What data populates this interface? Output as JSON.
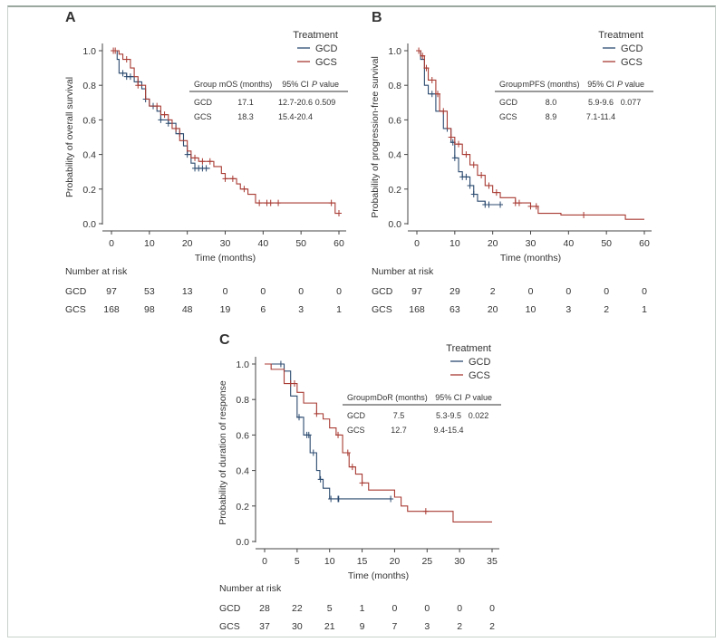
{
  "colors": {
    "GCD": "#2b4a6f",
    "GCS": "#a83a32"
  },
  "chart_data": [
    {
      "panel": "A",
      "type": "line",
      "subtype": "kaplan-meier",
      "xlabel": "Time (months)",
      "ylabel": "Probability of overall survival",
      "xlim": [
        0,
        60
      ],
      "ylim": [
        0,
        1
      ],
      "xticks": [
        0,
        10,
        20,
        30,
        40,
        50,
        60
      ],
      "yticks": [
        "0.0",
        "0.2",
        "0.4",
        "0.6",
        "0.8",
        "1.0"
      ],
      "legend": {
        "title": "Treatment",
        "position": "top-right",
        "items": [
          "GCD",
          "GCS"
        ]
      },
      "stats_table": {
        "headers": [
          "Group",
          "mOS (months)",
          "95% CI",
          "P value"
        ],
        "rows": [
          [
            "GCD",
            "17.1",
            "12.7-20.6",
            "0.509"
          ],
          [
            "GCS",
            "18.3",
            "15.4-20.4",
            ""
          ]
        ]
      },
      "series": [
        {
          "name": "GCD",
          "steps": [
            [
              0,
              1
            ],
            [
              1.5,
              0.95
            ],
            [
              2,
              0.87
            ],
            [
              4,
              0.85
            ],
            [
              6,
              0.82
            ],
            [
              8,
              0.78
            ],
            [
              9,
              0.72
            ],
            [
              10,
              0.68
            ],
            [
              12,
              0.65
            ],
            [
              13,
              0.6
            ],
            [
              15,
              0.58
            ],
            [
              17,
              0.52
            ],
            [
              19,
              0.45
            ],
            [
              20,
              0.4
            ],
            [
              21,
              0.35
            ],
            [
              22,
              0.32
            ]
          ],
          "end": 26,
          "censored": [
            3,
            4,
            5,
            7,
            9,
            11,
            13,
            15,
            18,
            20,
            22,
            23,
            24,
            25
          ]
        },
        {
          "name": "GCS",
          "steps": [
            [
              0,
              1
            ],
            [
              2,
              0.98
            ],
            [
              3,
              0.95
            ],
            [
              5,
              0.9
            ],
            [
              6,
              0.85
            ],
            [
              7,
              0.8
            ],
            [
              9,
              0.72
            ],
            [
              10,
              0.68
            ],
            [
              13,
              0.63
            ],
            [
              15,
              0.6
            ],
            [
              16,
              0.55
            ],
            [
              18,
              0.48
            ],
            [
              20,
              0.42
            ],
            [
              21,
              0.38
            ],
            [
              23,
              0.36
            ],
            [
              27,
              0.33
            ],
            [
              29,
              0.29
            ],
            [
              30,
              0.26
            ],
            [
              33,
              0.23
            ],
            [
              34,
              0.2
            ],
            [
              36,
              0.17
            ],
            [
              38,
              0.12
            ],
            [
              59,
              0.06
            ]
          ],
          "end": 60,
          "censored": [
            0.5,
            1,
            4,
            7,
            12,
            14,
            17,
            22,
            24,
            26,
            30,
            32,
            35,
            39,
            41,
            42,
            44,
            58,
            60
          ]
        }
      ],
      "risk_table": {
        "title": "Number at risk",
        "times": [
          0,
          10,
          20,
          30,
          40,
          50,
          60
        ],
        "rows": [
          {
            "group": "GCD",
            "values": [
              "97",
              "53",
              "13",
              "0",
              "0",
              "0",
              "0"
            ]
          },
          {
            "group": "GCS",
            "values": [
              "168",
              "98",
              "48",
              "19",
              "6",
              "3",
              "1"
            ]
          }
        ]
      }
    },
    {
      "panel": "B",
      "type": "line",
      "subtype": "kaplan-meier",
      "xlabel": "Time (months)",
      "ylabel": "Probability of progression-free survival",
      "xlim": [
        0,
        60
      ],
      "ylim": [
        0,
        1
      ],
      "xticks": [
        0,
        10,
        20,
        30,
        40,
        50,
        60
      ],
      "yticks": [
        "0.0",
        "0.2",
        "0.4",
        "0.6",
        "0.8",
        "1.0"
      ],
      "legend": {
        "title": "Treatment",
        "position": "top-right",
        "items": [
          "GCD",
          "GCS"
        ]
      },
      "stats_table": {
        "headers": [
          "Group",
          "mPFS (months)",
          "95% CI",
          "P value"
        ],
        "rows": [
          [
            "GCD",
            "8.0",
            "5.9-9.6",
            "0.077"
          ],
          [
            "GCS",
            "8.9",
            "7.1-11.4",
            ""
          ]
        ]
      },
      "series": [
        {
          "name": "GCD",
          "steps": [
            [
              0,
              1
            ],
            [
              1,
              0.95
            ],
            [
              2,
              0.8
            ],
            [
              3,
              0.75
            ],
            [
              5,
              0.65
            ],
            [
              7,
              0.55
            ],
            [
              9,
              0.47
            ],
            [
              10,
              0.38
            ],
            [
              11,
              0.3
            ],
            [
              12,
              0.27
            ],
            [
              14,
              0.22
            ],
            [
              15,
              0.17
            ],
            [
              16,
              0.13
            ],
            [
              18,
              0.11
            ]
          ],
          "end": 22,
          "censored": [
            4,
            8,
            9.5,
            10,
            12,
            13,
            14,
            15,
            18,
            19,
            22
          ]
        },
        {
          "name": "GCS",
          "steps": [
            [
              0,
              1
            ],
            [
              1,
              0.97
            ],
            [
              2,
              0.9
            ],
            [
              3,
              0.83
            ],
            [
              5,
              0.75
            ],
            [
              6,
              0.65
            ],
            [
              8,
              0.55
            ],
            [
              9,
              0.5
            ],
            [
              10,
              0.46
            ],
            [
              12,
              0.4
            ],
            [
              14,
              0.34
            ],
            [
              16,
              0.28
            ],
            [
              18,
              0.22
            ],
            [
              20,
              0.18
            ],
            [
              22,
              0.15
            ],
            [
              26,
              0.12
            ],
            [
              30,
              0.1
            ],
            [
              32,
              0.06
            ],
            [
              38,
              0.05
            ],
            [
              55,
              0.025
            ]
          ],
          "end": 60,
          "censored": [
            0.5,
            1.5,
            2.5,
            4,
            5.5,
            7,
            9,
            11,
            13,
            15,
            17,
            19,
            21,
            26,
            27,
            30,
            31.5,
            44
          ]
        }
      ],
      "risk_table": {
        "title": "Number at risk",
        "times": [
          0,
          10,
          20,
          30,
          40,
          50,
          60
        ],
        "rows": [
          {
            "group": "GCD",
            "values": [
              "97",
              "29",
              "2",
              "0",
              "0",
              "0",
              "0"
            ]
          },
          {
            "group": "GCS",
            "values": [
              "168",
              "63",
              "20",
              "10",
              "3",
              "2",
              "1"
            ]
          }
        ]
      }
    },
    {
      "panel": "C",
      "type": "line",
      "subtype": "kaplan-meier",
      "xlabel": "Time (months)",
      "ylabel": "Probability of duration of response",
      "xlim": [
        0,
        35
      ],
      "ylim": [
        0,
        1
      ],
      "xticks": [
        0,
        5,
        10,
        15,
        20,
        25,
        30,
        35
      ],
      "yticks": [
        "0.0",
        "0.2",
        "0.4",
        "0.6",
        "0.8",
        "1.0"
      ],
      "legend": {
        "title": "Treatment",
        "position": "top-right",
        "items": [
          "GCD",
          "GCS"
        ]
      },
      "stats_table": {
        "headers": [
          "Group",
          "mDoR (months)",
          "95% CI",
          "P value"
        ],
        "rows": [
          [
            "GCD",
            "7.5",
            "5.3-9.5",
            "0.022"
          ],
          [
            "GCS",
            "12.7",
            "9.4-15.4",
            ""
          ]
        ]
      },
      "series": [
        {
          "name": "GCD",
          "steps": [
            [
              0,
              1
            ],
            [
              3,
              0.96
            ],
            [
              4,
              0.82
            ],
            [
              5,
              0.7
            ],
            [
              6,
              0.6
            ],
            [
              7,
              0.5
            ],
            [
              8,
              0.4
            ],
            [
              8.5,
              0.35
            ],
            [
              9,
              0.3
            ],
            [
              10,
              0.24
            ]
          ],
          "end": 19.5,
          "censored": [
            2.5,
            5.3,
            6.5,
            6.8,
            7.5,
            8.6,
            10.2,
            11.3,
            11.4,
            19.4
          ]
        },
        {
          "name": "GCS",
          "steps": [
            [
              0,
              1
            ],
            [
              1,
              0.97
            ],
            [
              3,
              0.89
            ],
            [
              5,
              0.84
            ],
            [
              6,
              0.78
            ],
            [
              8,
              0.72
            ],
            [
              9,
              0.69
            ],
            [
              10,
              0.64
            ],
            [
              11,
              0.6
            ],
            [
              12,
              0.5
            ],
            [
              13,
              0.42
            ],
            [
              14,
              0.38
            ],
            [
              15,
              0.33
            ],
            [
              16,
              0.29
            ],
            [
              20,
              0.25
            ],
            [
              21,
              0.2
            ],
            [
              22,
              0.17
            ],
            [
              29,
              0.11
            ]
          ],
          "end": 35,
          "censored": [
            4,
            4.6,
            8,
            11.3,
            12.8,
            13.5,
            15,
            24.8
          ]
        }
      ],
      "risk_table": {
        "title": "Number at risk",
        "times": [
          0,
          5,
          10,
          15,
          20,
          25,
          30,
          35
        ],
        "rows": [
          {
            "group": "GCD",
            "values": [
              "28",
              "22",
              "5",
              "1",
              "0",
              "0",
              "0",
              "0"
            ]
          },
          {
            "group": "GCS",
            "values": [
              "37",
              "30",
              "21",
              "9",
              "7",
              "3",
              "2",
              "2"
            ]
          }
        ]
      }
    }
  ]
}
